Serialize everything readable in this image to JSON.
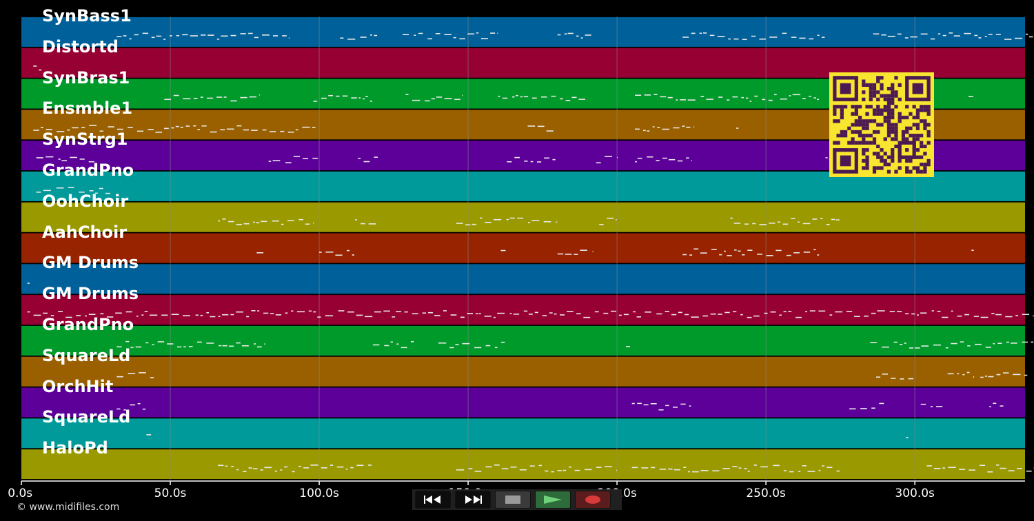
{
  "tracks": [
    {
      "name": "SynBass1",
      "color": "#00609a"
    },
    {
      "name": "Distortd",
      "color": "#970033"
    },
    {
      "name": "SynBras1",
      "color": "#009a2a"
    },
    {
      "name": "Ensmble1",
      "color": "#9a6000"
    },
    {
      "name": "SynStrg1",
      "color": "#5d009a"
    },
    {
      "name": "GrandPno",
      "color": "#009a9a"
    },
    {
      "name": "OohChoir",
      "color": "#9a9a00"
    },
    {
      "name": "AahChoir",
      "color": "#972300"
    },
    {
      "name": "GM Drums",
      "color": "#00609a"
    },
    {
      "name": "GM Drums",
      "color": "#970033"
    },
    {
      "name": "GrandPno",
      "color": "#009a2a"
    },
    {
      "name": "SquareLd",
      "color": "#9a6000"
    },
    {
      "name": "OrchHit",
      "color": "#5d009a"
    },
    {
      "name": "SquareLd",
      "color": "#009a9a"
    },
    {
      "name": "HaloPd",
      "color": "#9a9a00"
    }
  ],
  "timeline": {
    "tick_labels": [
      "0.0s",
      "50.0s",
      "100.0s",
      "150.0s",
      "200.0s",
      "250.0s",
      "300.0s"
    ],
    "tick_seconds": [
      0,
      50,
      100,
      150,
      200,
      250,
      300
    ],
    "max_seconds": 337
  },
  "copyright": "© www.midifiles.com",
  "transport": {
    "rewind": "rewind-icon",
    "fast_forward": "fast-forward-icon",
    "stop": "stop-icon",
    "play": "play-icon",
    "record": "record-icon"
  },
  "colors": {
    "background": "#000000",
    "note": "#e8e8e8",
    "grid": "#8a8a8a",
    "qr_bg": "#f7e530",
    "qr_fg": "#4b1a52"
  }
}
